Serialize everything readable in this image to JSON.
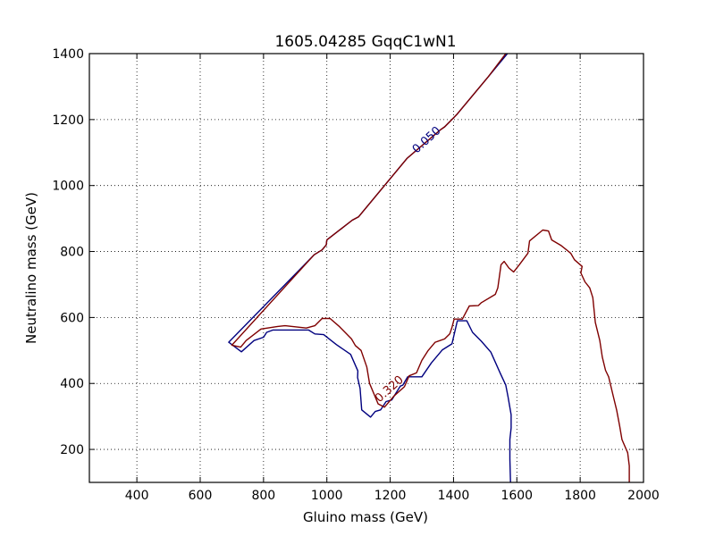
{
  "chart_data": {
    "type": "line",
    "title": "1605.04285 GqqC1wN1",
    "xlabel": "Gluino mass (GeV)",
    "ylabel": "Neutralino mass (GeV)",
    "xlim": [
      250,
      2000
    ],
    "ylim": [
      100,
      1400
    ],
    "xticks": [
      400,
      600,
      800,
      1000,
      1200,
      1400,
      1600,
      1800,
      2000
    ],
    "yticks": [
      200,
      400,
      600,
      800,
      1000,
      1200,
      1400
    ],
    "grid": true,
    "colors": {
      "blue": "#00007f",
      "red": "#7f0000"
    },
    "series": [
      {
        "label": "0.050",
        "color": "#00007f",
        "label_at": {
          "x": 1315,
          "y": 1138,
          "angle": -42
        },
        "points": [
          [
            1570,
            1400
          ],
          [
            1510,
            1330
          ],
          [
            1410,
            1215
          ],
          [
            1372,
            1178
          ],
          [
            1360,
            1170
          ],
          [
            1253,
            1082
          ],
          [
            1100,
            905
          ],
          [
            1080,
            895
          ],
          [
            1000,
            835
          ],
          [
            998,
            820
          ],
          [
            985,
            805
          ],
          [
            960,
            790
          ],
          [
            690,
            525
          ],
          [
            730,
            496
          ],
          [
            770,
            530
          ],
          [
            800,
            540
          ],
          [
            810,
            555
          ],
          [
            830,
            562
          ],
          [
            942,
            562
          ],
          [
            962,
            550
          ],
          [
            990,
            548
          ],
          [
            1030,
            518
          ],
          [
            1075,
            488
          ],
          [
            1098,
            438
          ],
          [
            1097,
            418
          ],
          [
            1105,
            385
          ],
          [
            1110,
            320
          ],
          [
            1138,
            298
          ],
          [
            1153,
            315
          ],
          [
            1170,
            320
          ],
          [
            1187,
            345
          ],
          [
            1205,
            350
          ],
          [
            1218,
            370
          ],
          [
            1232,
            392
          ],
          [
            1240,
            395
          ],
          [
            1255,
            420
          ],
          [
            1275,
            420
          ],
          [
            1300,
            420
          ],
          [
            1330,
            462
          ],
          [
            1365,
            502
          ],
          [
            1395,
            520
          ],
          [
            1412,
            590
          ],
          [
            1442,
            590
          ],
          [
            1460,
            555
          ],
          [
            1488,
            528
          ],
          [
            1518,
            495
          ],
          [
            1548,
            430
          ],
          [
            1565,
            395
          ],
          [
            1572,
            360
          ],
          [
            1582,
            305
          ],
          [
            1582,
            265
          ],
          [
            1578,
            230
          ],
          [
            1578,
            170
          ],
          [
            1580,
            100
          ]
        ]
      },
      {
        "label": "0.320",
        "color": "#7f0000",
        "label_at": {
          "x": 1197,
          "y": 383,
          "angle": -42
        },
        "points": [
          [
            1565,
            1400
          ],
          [
            1510,
            1330
          ],
          [
            1410,
            1215
          ],
          [
            1372,
            1178
          ],
          [
            1360,
            1170
          ],
          [
            1253,
            1082
          ],
          [
            1100,
            905
          ],
          [
            1080,
            895
          ],
          [
            1000,
            835
          ],
          [
            998,
            820
          ],
          [
            985,
            805
          ],
          [
            960,
            790
          ],
          [
            700,
            516
          ],
          [
            728,
            510
          ],
          [
            745,
            530
          ],
          [
            792,
            565
          ],
          [
            845,
            573
          ],
          [
            868,
            575
          ],
          [
            935,
            568
          ],
          [
            962,
            575
          ],
          [
            985,
            597
          ],
          [
            1010,
            597
          ],
          [
            1040,
            572
          ],
          [
            1078,
            535
          ],
          [
            1090,
            515
          ],
          [
            1108,
            500
          ],
          [
            1126,
            450
          ],
          [
            1135,
            400
          ],
          [
            1162,
            338
          ],
          [
            1182,
            328
          ],
          [
            1212,
            362
          ],
          [
            1245,
            390
          ],
          [
            1260,
            423
          ],
          [
            1283,
            432
          ],
          [
            1300,
            470
          ],
          [
            1320,
            500
          ],
          [
            1342,
            525
          ],
          [
            1372,
            535
          ],
          [
            1388,
            550
          ],
          [
            1395,
            570
          ],
          [
            1402,
            595
          ],
          [
            1428,
            595
          ],
          [
            1450,
            635
          ],
          [
            1478,
            636
          ],
          [
            1488,
            645
          ],
          [
            1532,
            670
          ],
          [
            1540,
            690
          ],
          [
            1550,
            760
          ],
          [
            1560,
            770
          ],
          [
            1575,
            750
          ],
          [
            1590,
            738
          ],
          [
            1608,
            760
          ],
          [
            1635,
            795
          ],
          [
            1640,
            832
          ],
          [
            1682,
            865
          ],
          [
            1700,
            862
          ],
          [
            1710,
            835
          ],
          [
            1740,
            818
          ],
          [
            1770,
            795
          ],
          [
            1782,
            775
          ],
          [
            1806,
            755
          ],
          [
            1802,
            735
          ],
          [
            1815,
            708
          ],
          [
            1830,
            690
          ],
          [
            1840,
            660
          ],
          [
            1848,
            585
          ],
          [
            1862,
            530
          ],
          [
            1870,
            480
          ],
          [
            1880,
            440
          ],
          [
            1890,
            420
          ],
          [
            1905,
            360
          ],
          [
            1915,
            320
          ],
          [
            1925,
            270
          ],
          [
            1932,
            230
          ],
          [
            1950,
            190
          ],
          [
            1955,
            150
          ],
          [
            1955,
            100
          ]
        ]
      }
    ]
  }
}
